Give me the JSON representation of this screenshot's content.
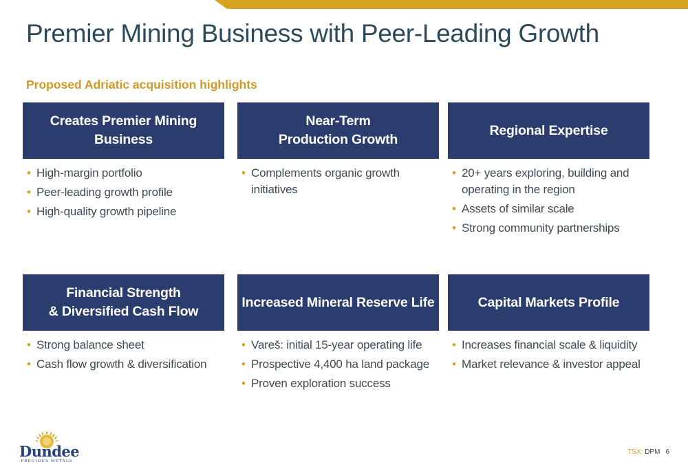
{
  "title": "Premier Mining Business with Peer-Leading Growth",
  "subtitle": "Proposed Adriatic acquisition highlights",
  "cards": [
    {
      "header": "Creates Premier Mining\nBusiness",
      "bullets": [
        "High-margin portfolio",
        "Peer-leading growth profile",
        "High-quality growth pipeline"
      ]
    },
    {
      "header": "Near-Term\nProduction Growth",
      "bullets": [
        "Complements organic growth initiatives"
      ]
    },
    {
      "header": "Regional Expertise",
      "bullets": [
        "20+ years exploring, building and operating in the region",
        "Assets of similar scale",
        "Strong community partnerships"
      ]
    },
    {
      "header": "Financial Strength\n& Diversified Cash Flow",
      "bullets": [
        "Strong balance sheet",
        "Cash flow growth & diversification"
      ]
    },
    {
      "header": "Increased Mineral Reserve Life",
      "bullets": [
        "Vareš: initial 15-year operating life",
        "Prospective 4,400 ha land package",
        "Proven exploration success"
      ]
    },
    {
      "header": "Capital Markets Profile",
      "bullets": [
        "Increases financial scale & liquidity",
        "Market relevance & investor appeal"
      ]
    }
  ],
  "logo": {
    "name": "Dundee",
    "tagline": "PRECIOUS METALS",
    "icon": "sun-emblem-icon"
  },
  "footer": {
    "exchange": "TSX:",
    "ticker": "DPM",
    "page": "6"
  },
  "colors": {
    "accent": "#d6a21f",
    "header_bg": "#2b3c6e",
    "title": "#2c4a5a",
    "subtitle": "#d19a27",
    "logo": "#25427c"
  }
}
